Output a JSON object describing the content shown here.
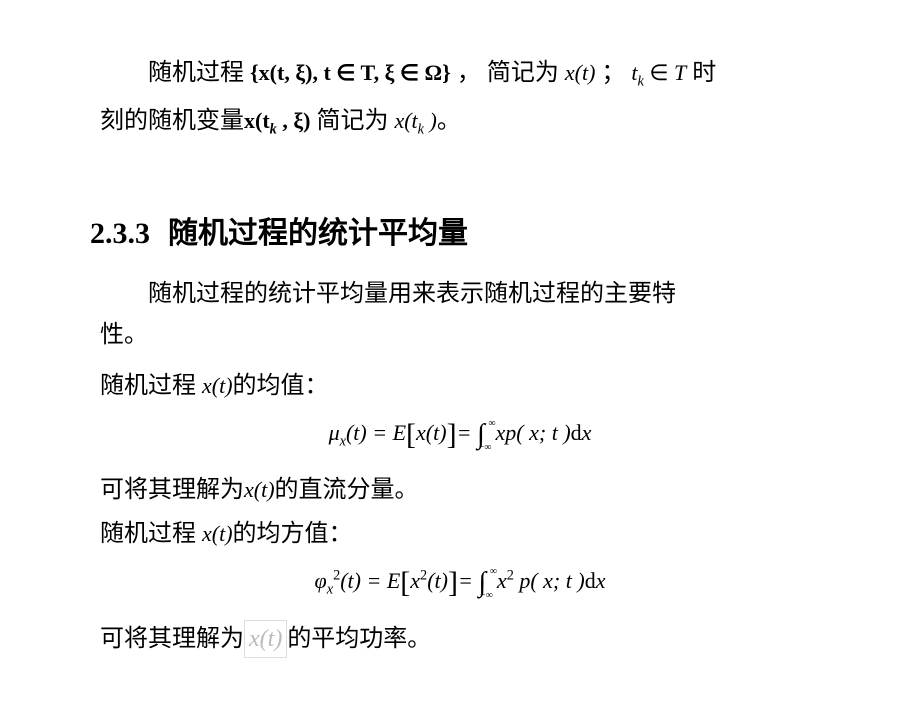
{
  "top": {
    "line1_pre": "随机过程",
    "line1_set": "{x(t, ξ), t ∈ T, ξ ∈ Ω}",
    "line1_mid": " ， 简记为 ",
    "line1_xt": "x(t)",
    "line1_semicolon": "；",
    "line1_tk": "t",
    "line1_tk_sub": "k",
    "line1_in": " ∈ ",
    "line1_T": "T",
    "line1_tail": " 时",
    "line2_pre": "刻的随机变量",
    "line2_xtk": "x(t",
    "line2_k": "k",
    "line2_xi": " , ξ)",
    "line2_mid": " 简记为 ",
    "line2_xt2": "x(t",
    "line2_k2": "k",
    "line2_close": " )",
    "line2_period": "。"
  },
  "heading": {
    "number": "2.3.3",
    "title": "随机过程的统计平均量"
  },
  "body": {
    "intro1": "随机过程的统计平均量用来表示随机过程的主要特",
    "intro2": "性。",
    "mean_label_pre": "随机过程 ",
    "mean_label_xt": "x(t)",
    "mean_label_post": "的均值：",
    "mean_eq": {
      "mu": "μ",
      "mu_sub": "x",
      "t": "(t) = E",
      "lbrace": "[",
      "xt": "x(t)",
      "rbrace": "]",
      "eq2": "= ",
      "int": "∫",
      "lo": "−∞",
      "hi": "∞",
      "integrand": "xp( x;  t )",
      "d": "d",
      "dx": "x"
    },
    "mean_interp_pre": "可将其理解为",
    "mean_interp_xt": "x(t)",
    "mean_interp_post": "的直流分量。",
    "msq_label_pre": "随机过程 ",
    "msq_label_xt": "x(t)",
    "msq_label_post": "的均方值：",
    "msq_eq": {
      "phi": "φ",
      "phi_sup": "2",
      "phi_sub": "x",
      "t": "(t) = E",
      "lbrace": "[",
      "x": "x",
      "sq1": "2",
      "tclose": "(t)",
      "rbrace": "]",
      "eq2": "= ",
      "int": "∫",
      "lo": "−∞",
      "hi": "∞",
      "x2": "x",
      "sq2": "2",
      "p": " p( x;  t )",
      "d": "d",
      "dx": "x"
    },
    "msq_interp_pre": "可将其理解为",
    "msq_interp_xt": "x(t)",
    "msq_interp_post": "的平均功率。"
  },
  "style": {
    "bg": "#ffffff",
    "text": "#000000",
    "faded": "#bbbbbb",
    "body_fontsize": 24,
    "heading_fontsize": 30,
    "eq_fontsize": 22
  }
}
